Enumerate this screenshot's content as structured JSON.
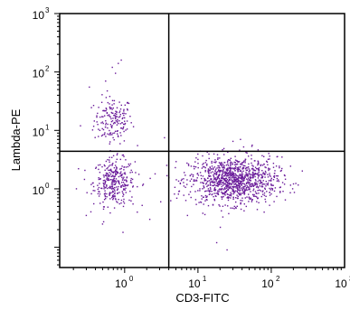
{
  "chart_data": {
    "type": "scatter",
    "title": "",
    "xlabel": "CD3-FITC",
    "ylabel": "Lambda-PE",
    "xscale": "log",
    "yscale": "log",
    "xlim": [
      0.13,
      1000
    ],
    "ylim": [
      0.045,
      1000
    ],
    "x_ticks": [
      {
        "value": 1,
        "base": "10",
        "exp": "0"
      },
      {
        "value": 10,
        "base": "10",
        "exp": "1"
      },
      {
        "value": 100,
        "base": "10",
        "exp": "2"
      },
      {
        "value": 1000,
        "base": "10",
        "exp": "3"
      }
    ],
    "y_ticks": [
      {
        "value": 1,
        "base": "10",
        "exp": "0"
      },
      {
        "value": 10,
        "base": "10",
        "exp": "1"
      },
      {
        "value": 100,
        "base": "10",
        "exp": "2"
      },
      {
        "value": 1000,
        "base": "10",
        "exp": "3"
      }
    ],
    "quadrant_gates": {
      "x": 4.0,
      "y": 4.4
    },
    "grid": false,
    "legend": "none",
    "point_color": "#6a1b9a",
    "clusters": [
      {
        "center_x": 0.7,
        "center_y": 15,
        "n": 170,
        "sd_log_x": 0.13,
        "sd_log_y": 0.2
      },
      {
        "center_x": 0.72,
        "center_y": 1.3,
        "n": 320,
        "sd_log_x": 0.14,
        "sd_log_y": 0.2
      },
      {
        "center_x": 30,
        "center_y": 1.4,
        "n": 1100,
        "sd_log_x": 0.3,
        "sd_log_y": 0.2
      }
    ],
    "sparse_points": [
      [
        0.75,
        95
      ],
      [
        0.55,
        70
      ],
      [
        0.82,
        140
      ],
      [
        0.33,
        55
      ],
      [
        0.68,
        120
      ],
      [
        0.9,
        160
      ],
      [
        0.25,
        12
      ],
      [
        0.22,
        1.0
      ],
      [
        0.3,
        0.35
      ],
      [
        0.95,
        0.18
      ],
      [
        0.5,
        0.25
      ],
      [
        1.3,
        0.55
      ],
      [
        1.8,
        1.2
      ],
      [
        2.6,
        1.8
      ],
      [
        3.1,
        0.6
      ],
      [
        2.2,
        0.3
      ],
      [
        1.5,
        5.5
      ],
      [
        3.5,
        7.5
      ],
      [
        30,
        6.5
      ],
      [
        42,
        5.2
      ],
      [
        55,
        5.6
      ],
      [
        18,
        0.12
      ],
      [
        25,
        0.09
      ],
      [
        80,
        0.4
      ],
      [
        120,
        1.5
      ],
      [
        140,
        3.5
      ],
      [
        6.5,
        1.9
      ],
      [
        7.2,
        0.35
      ],
      [
        5.5,
        0.9
      ],
      [
        38,
        7.0
      ]
    ]
  }
}
